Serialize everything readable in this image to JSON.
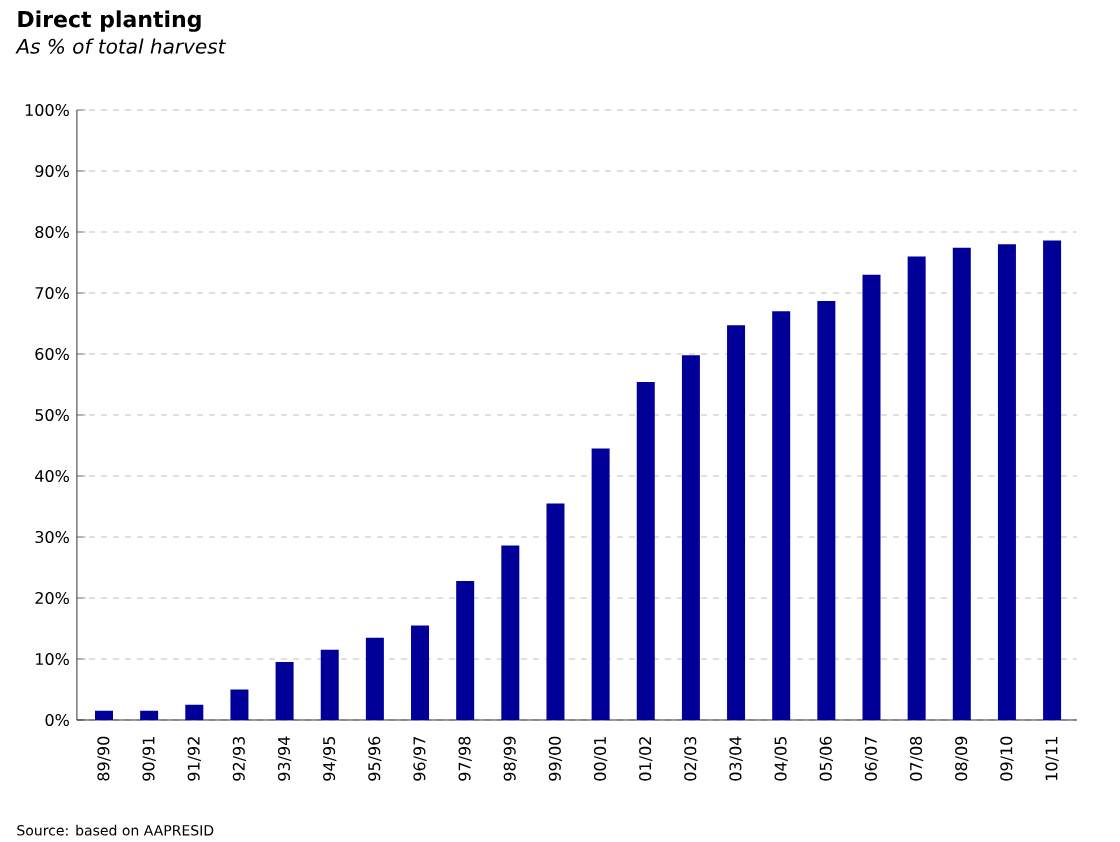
{
  "chart_data": {
    "type": "bar",
    "title": "Direct planting",
    "subtitle": "As % of total harvest",
    "categories": [
      "89/90",
      "90/91",
      "91/92",
      "92/93",
      "93/94",
      "94/95",
      "95/96",
      "96/97",
      "97/98",
      "98/99",
      "99/00",
      "00/01",
      "01/02",
      "02/03",
      "03/04",
      "04/05",
      "05/06",
      "06/07",
      "07/08",
      "08/09",
      "09/10",
      "10/11"
    ],
    "values": [
      1.5,
      1.5,
      2.5,
      5,
      9.5,
      11.5,
      13.5,
      15.5,
      22.8,
      28.6,
      35.5,
      44.5,
      55.4,
      59.8,
      64.7,
      67.0,
      68.7,
      73.0,
      76.0,
      77.4,
      78.0,
      78.6
    ],
    "color": "#000099",
    "ylim": [
      0,
      100
    ],
    "yticks": [
      {
        "value": 0,
        "label": "0%"
      },
      {
        "value": 10,
        "label": "10%"
      },
      {
        "value": 20,
        "label": "20%"
      },
      {
        "value": 30,
        "label": "30%"
      },
      {
        "value": 40,
        "label": "40%"
      },
      {
        "value": 50,
        "label": "50%"
      },
      {
        "value": 60,
        "label": "60%"
      },
      {
        "value": 70,
        "label": "70%"
      },
      {
        "value": 80,
        "label": "80%"
      },
      {
        "value": 90,
        "label": "90%"
      },
      {
        "value": 100,
        "label": "100%"
      }
    ],
    "grid": "y",
    "annotations": [
      "Source: based on AAPRESID"
    ]
  }
}
